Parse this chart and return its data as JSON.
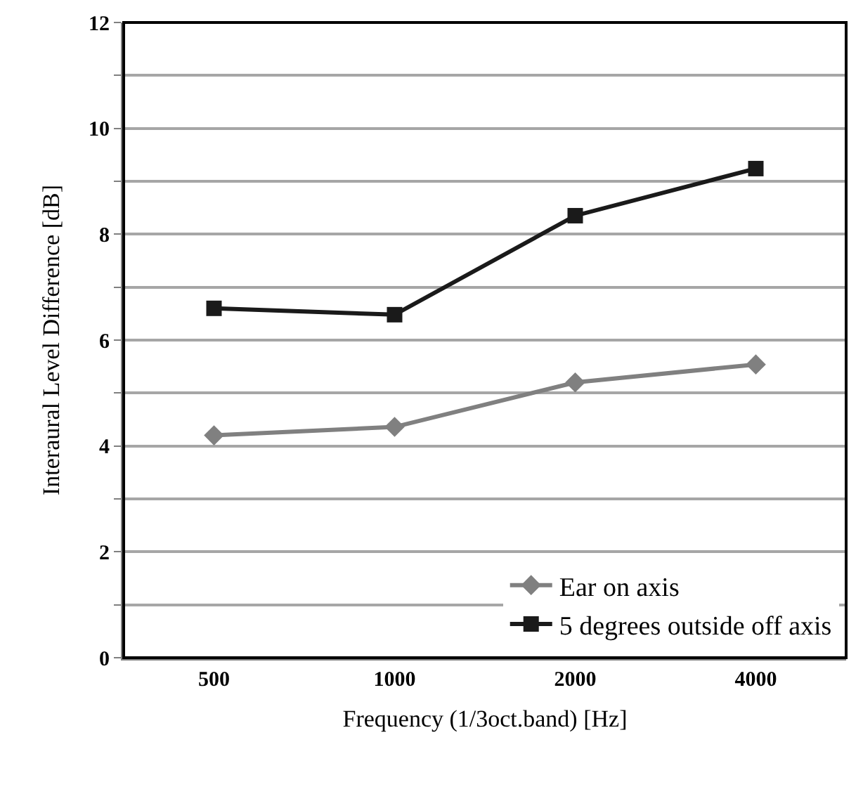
{
  "chart_data": {
    "type": "line",
    "xlabel": "Frequency (1/3oct.band) [Hz]",
    "ylabel": "Interaural Level Difference [dB]",
    "categories": [
      "500",
      "1000",
      "2000",
      "4000"
    ],
    "series": [
      {
        "name": "Ear on axis",
        "color": "#808080",
        "marker": "diamond",
        "values": [
          4.2,
          4.36,
          5.2,
          5.54
        ]
      },
      {
        "name": "5 degrees outside off axis",
        "color": "#1a1a1a",
        "marker": "square",
        "values": [
          6.6,
          6.48,
          8.35,
          9.24
        ]
      }
    ],
    "ylim": [
      0,
      12
    ],
    "yticks": [
      0,
      {
        "value": 1,
        "label": null
      },
      2,
      {
        "value": 3,
        "label": null
      },
      4,
      {
        "value": 5,
        "label": null
      },
      6,
      {
        "value": 7,
        "label": null
      },
      8,
      {
        "value": 9,
        "label": null
      },
      10,
      {
        "value": 11,
        "label": null
      },
      12
    ],
    "grid": "y",
    "legend": "bottom right",
    "line_style": "solid"
  }
}
